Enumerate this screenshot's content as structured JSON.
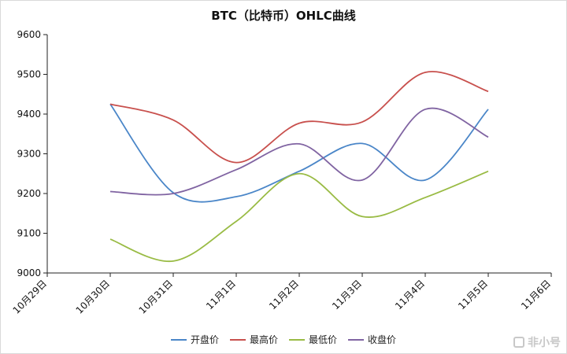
{
  "chart_data": {
    "type": "line",
    "title": "BTC（比特币）OHLC曲线",
    "xlabel": "",
    "ylabel": "",
    "categories": [
      "10月29日",
      "10月30日",
      "10月31日",
      "11月1日",
      "11月2日",
      "11月3日",
      "11月4日",
      "11月5日",
      "11月6日"
    ],
    "ylim": [
      9000,
      9600
    ],
    "yticks": [
      9000,
      9100,
      9200,
      9300,
      9400,
      9500,
      9600
    ],
    "grid": false,
    "legend_position": "bottom",
    "smooth": true,
    "series": [
      {
        "name": "开盘价",
        "color": "#4a86c8",
        "values": [
          null,
          9425,
          9202,
          9192,
          9256,
          9326,
          9234,
          9412,
          null
        ]
      },
      {
        "name": "最高价",
        "color": "#c8504d",
        "values": [
          null,
          9425,
          9385,
          9278,
          9377,
          9380,
          9505,
          9457,
          null
        ]
      },
      {
        "name": "最低价",
        "color": "#99bb44",
        "values": [
          null,
          9085,
          9030,
          9130,
          9250,
          9142,
          9190,
          9256,
          null
        ]
      },
      {
        "name": "收盘价",
        "color": "#8064a2",
        "values": [
          null,
          9205,
          9200,
          9260,
          9325,
          9234,
          9412,
          9342,
          null
        ]
      }
    ]
  },
  "watermark": {
    "text": "非小号",
    "icon": "logo-icon"
  }
}
